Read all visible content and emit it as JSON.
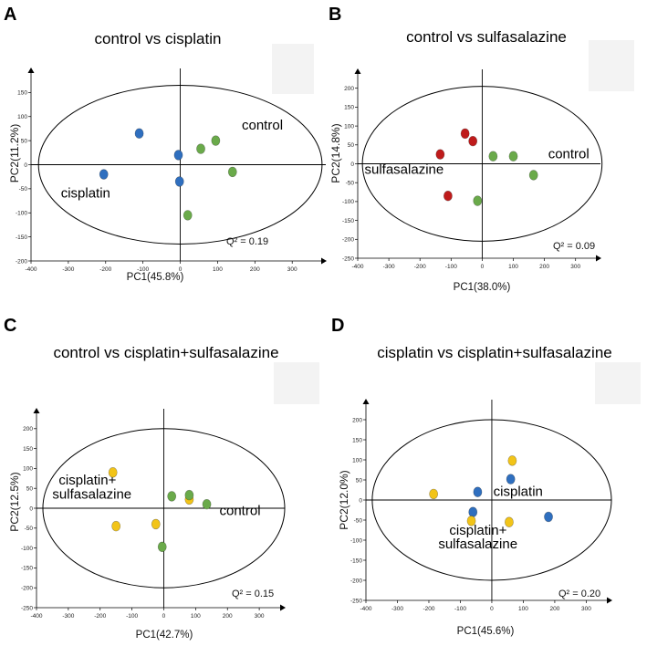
{
  "colors": {
    "control": "#6aaa4a",
    "cisplatin": "#2f6fbf",
    "sulfasalazine": "#bf1b1b",
    "cisplatin_sulfasalazine": "#f2c418",
    "axis": "#000000",
    "watermark": "#f3f3f3"
  },
  "chart_data": [
    {
      "type": "scatter",
      "panel_letter": "A",
      "title": "control vs cisplatin",
      "xlabel": "PC1(45.8%)",
      "ylabel": "PC2(11.2%)",
      "xlim": [
        -400,
        390
      ],
      "ylim": [
        -200,
        200
      ],
      "xticks": [
        -400,
        -300,
        -200,
        -100,
        0,
        100,
        200,
        300
      ],
      "yticks": [
        -200,
        -150,
        -100,
        -50,
        0,
        50,
        100,
        150
      ],
      "ellipse": {
        "rx": 380,
        "ry": 165
      },
      "q2": "Q² = 0.19",
      "series": [
        {
          "name": "cisplatin",
          "color_key": "cisplatin",
          "points": [
            [
              -110,
              65
            ],
            [
              -5,
              20
            ],
            [
              -205,
              -20
            ],
            [
              -2,
              -35
            ]
          ]
        },
        {
          "name": "control",
          "color_key": "control",
          "points": [
            [
              95,
              50
            ],
            [
              55,
              33
            ],
            [
              140,
              -15
            ],
            [
              20,
              -105
            ]
          ]
        }
      ],
      "annotations": [
        {
          "text": "control",
          "x": 165,
          "y": 73
        },
        {
          "text": "cisplatin",
          "x": -320,
          "y": -68
        }
      ]
    },
    {
      "type": "scatter",
      "panel_letter": "B",
      "title": "control vs sulfasalazine",
      "xlabel": "PC1(38.0%)",
      "ylabel": "PC2(14.8%)",
      "xlim": [
        -400,
        380
      ],
      "ylim": [
        -250,
        250
      ],
      "xticks": [
        -400,
        -300,
        -200,
        -100,
        0,
        100,
        200,
        300
      ],
      "yticks": [
        -250,
        -200,
        -150,
        -100,
        -50,
        0,
        50,
        100,
        150,
        200
      ],
      "ellipse": {
        "rx": 385,
        "ry": 205
      },
      "q2": "Q² = 0.09",
      "series": [
        {
          "name": "sulfasalazine",
          "color_key": "sulfasalazine",
          "points": [
            [
              -55,
              80
            ],
            [
              -30,
              60
            ],
            [
              -135,
              25
            ],
            [
              -110,
              -85
            ]
          ]
        },
        {
          "name": "control",
          "color_key": "control",
          "points": [
            [
              35,
              20
            ],
            [
              100,
              20
            ],
            [
              165,
              -30
            ],
            [
              -15,
              -98
            ]
          ]
        }
      ],
      "annotations": [
        {
          "text": "control",
          "x": 212,
          "y": 14
        },
        {
          "text": "sulfasalazine",
          "x": -378,
          "y": -27
        }
      ]
    },
    {
      "type": "scatter",
      "panel_letter": "C",
      "title": "control vs cisplatin+sulfasalazine",
      "xlabel": "PC1(42.7%)",
      "ylabel": "PC2(12.5%)",
      "xlim": [
        -400,
        380
      ],
      "ylim": [
        -250,
        250
      ],
      "xticks": [
        -400,
        -300,
        -200,
        -100,
        0,
        100,
        200,
        300
      ],
      "yticks": [
        -250,
        -200,
        -150,
        -100,
        -50,
        0,
        50,
        100,
        150,
        200
      ],
      "ellipse": {
        "rx": 380,
        "ry": 200
      },
      "q2": "Q² = 0.15",
      "series": [
        {
          "name": "cisplatin+sulfasalazine",
          "color_key": "cisplatin_sulfasalazine",
          "points": [
            [
              -160,
              90
            ],
            [
              80,
              22
            ],
            [
              -150,
              -45
            ],
            [
              -25,
              -40
            ]
          ]
        },
        {
          "name": "control",
          "color_key": "control",
          "points": [
            [
              25,
              30
            ],
            [
              80,
              33
            ],
            [
              135,
              10
            ],
            [
              -5,
              -97
            ]
          ]
        }
      ],
      "annotations": [
        {
          "text": "cisplatin+",
          "x": -330,
          "y": 60
        },
        {
          "text": "sulfasalazine",
          "x": -350,
          "y": 24
        },
        {
          "text": "control",
          "x": 175,
          "y": -17
        }
      ]
    },
    {
      "type": "scatter",
      "panel_letter": "D",
      "title": "cisplatin vs cisplatin+sulfasalazine",
      "xlabel": "PC1(45.6%)",
      "ylabel": "PC2(12.0%)",
      "xlim": [
        -400,
        380
      ],
      "ylim": [
        -250,
        250
      ],
      "xticks": [
        -400,
        -300,
        -200,
        -100,
        0,
        100,
        200,
        300
      ],
      "yticks": [
        -250,
        -200,
        -150,
        -100,
        -50,
        0,
        50,
        100,
        150,
        200
      ],
      "ellipse": {
        "rx": 380,
        "ry": 200
      },
      "q2": "Q² = 0.20",
      "series": [
        {
          "name": "cisplatin",
          "color_key": "cisplatin",
          "points": [
            [
              -45,
              20
            ],
            [
              60,
              52
            ],
            [
              -60,
              -30
            ],
            [
              180,
              -42
            ]
          ]
        },
        {
          "name": "cisplatin+sulfasalazine",
          "color_key": "cisplatin_sulfasalazine",
          "points": [
            [
              65,
              98
            ],
            [
              -185,
              15
            ],
            [
              -65,
              -52
            ],
            [
              55,
              -55
            ]
          ]
        }
      ],
      "annotations": [
        {
          "text": "cisplatin",
          "x": 5,
          "y": 10
        },
        {
          "text": "cisplatin+",
          "x": -135,
          "y": -86
        },
        {
          "text": "sulfasalazine",
          "x": -170,
          "y": -120
        }
      ]
    }
  ]
}
